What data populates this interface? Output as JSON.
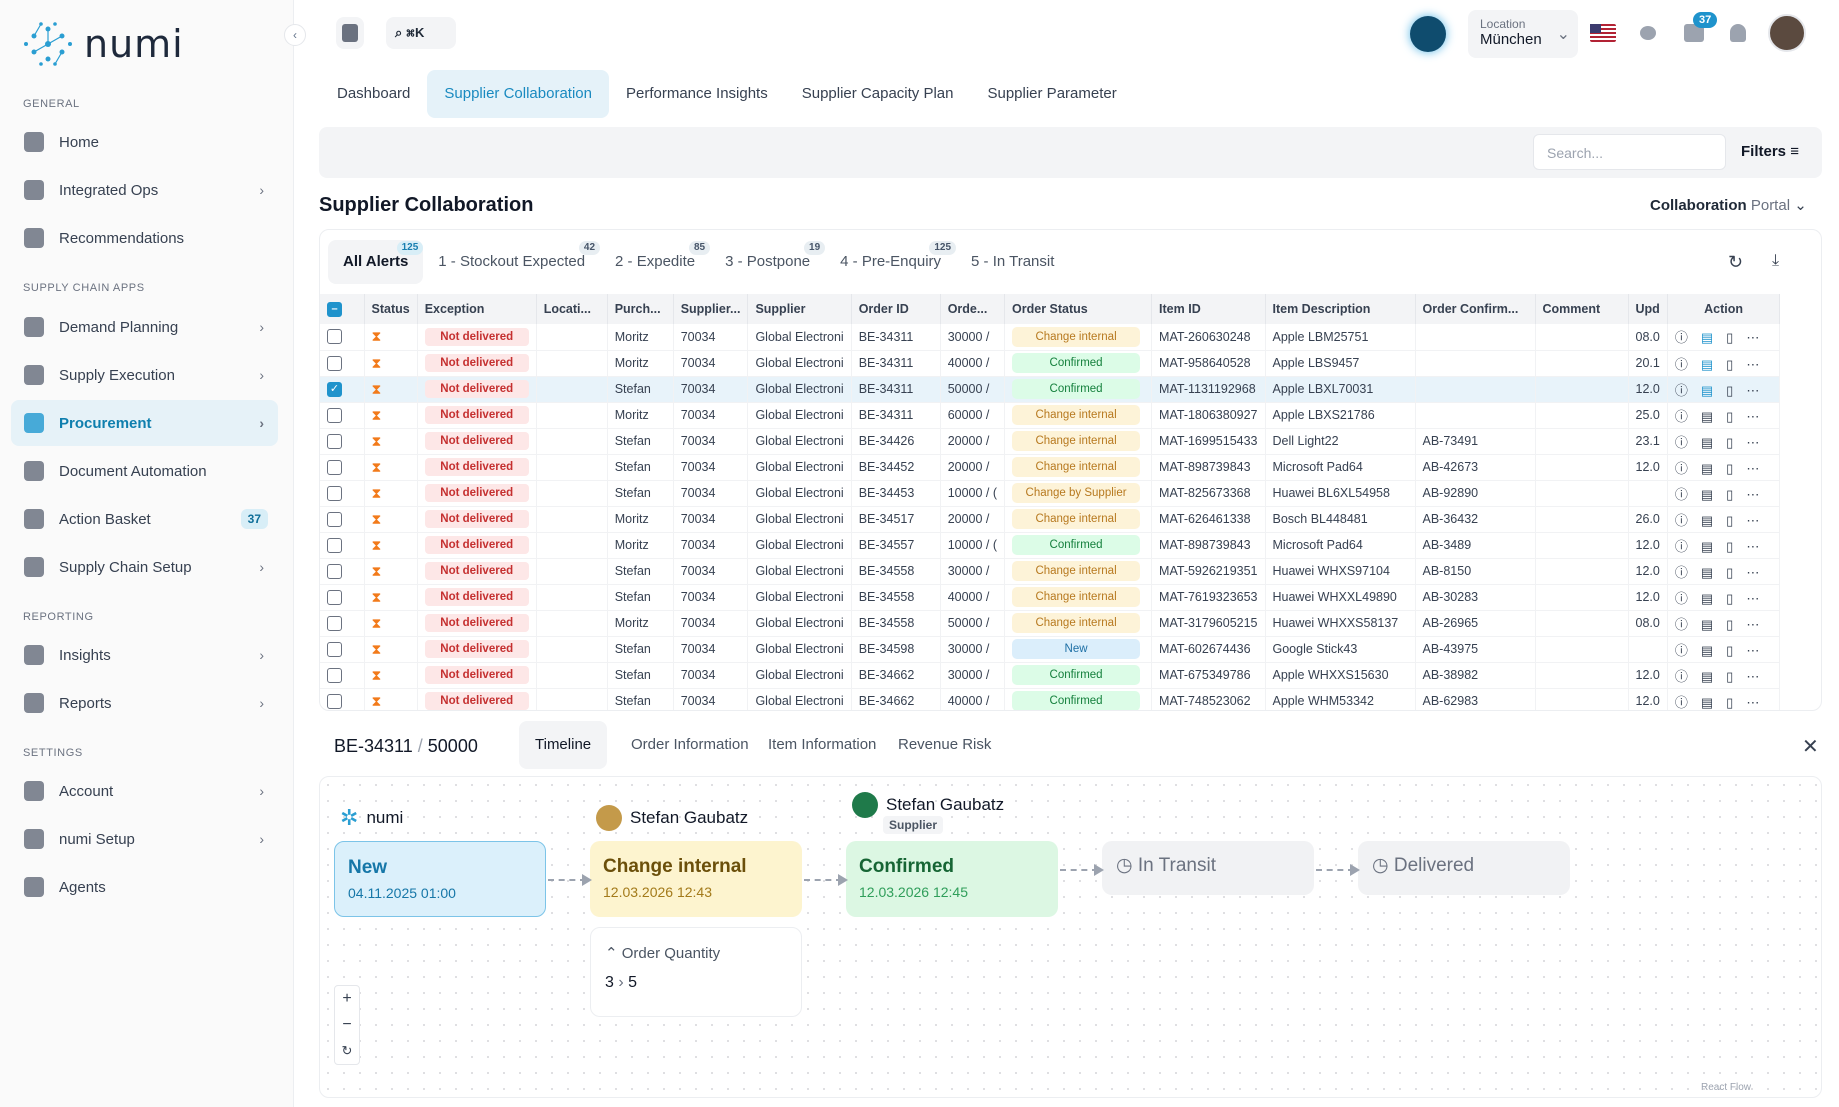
{
  "app": {
    "name": "numi",
    "collapse_icon": "chevron-left-icon"
  },
  "sidebar": {
    "sections": {
      "general": "GENERAL",
      "apps": "SUPPLY CHAIN APPS",
      "reporting": "REPORTING",
      "settings": "SETTINGS"
    },
    "items": [
      {
        "label": "Home",
        "icon": "home-icon"
      },
      {
        "label": "Integrated Ops",
        "icon": "ops-icon"
      },
      {
        "label": "Recommendations",
        "icon": "star-icon"
      },
      {
        "label": "Demand Planning",
        "icon": "chart-icon"
      },
      {
        "label": "Supply Execution",
        "icon": "truck-icon"
      },
      {
        "label": "Procurement",
        "icon": "dollar-icon"
      },
      {
        "label": "Document Automation",
        "icon": "doc-icon"
      },
      {
        "label": "Action Basket",
        "icon": "basket-icon",
        "badge": "37"
      },
      {
        "label": "Supply Chain Setup",
        "icon": "globe-icon"
      },
      {
        "label": "Insights",
        "icon": "flag-icon"
      },
      {
        "label": "Reports",
        "icon": "report-icon"
      },
      {
        "label": "Account",
        "icon": "user-icon"
      },
      {
        "label": "numi Setup",
        "icon": "gear-icon"
      },
      {
        "label": "Agents",
        "icon": "terminal-icon"
      }
    ]
  },
  "header": {
    "shortcut": "⌘K",
    "location_label": "Location",
    "location_value": "München",
    "notif_count": "37"
  },
  "tabs": [
    "Dashboard",
    "Supplier Collaboration",
    "Performance Insights",
    "Supplier Capacity Plan",
    "Supplier Parameter"
  ],
  "search": {
    "placeholder": "Search..."
  },
  "filters_label": "Filters",
  "page_title": "Supplier Collaboration",
  "portal": {
    "a": "Collaboration",
    "b": "Portal"
  },
  "alert_tabs": [
    {
      "label": "All Alerts",
      "count": "125"
    },
    {
      "label": "1 - Stockout Expected",
      "count": "42"
    },
    {
      "label": "2 - Expedite",
      "count": "85"
    },
    {
      "label": "3 - Postpone",
      "count": "19"
    },
    {
      "label": "4 - Pre-Enquiry",
      "count": "125"
    },
    {
      "label": "5 - In Transit",
      "count": ""
    }
  ],
  "columns": [
    "Status",
    "Exception",
    "Locati...",
    "Purch...",
    "Supplier...",
    "Supplier",
    "Order ID",
    "Orde...",
    "Order Status",
    "Item ID",
    "Item Description",
    "Order Confirm...",
    "Comment",
    "Upd",
    "Action"
  ],
  "rows": [
    [
      "Moritz",
      "70034",
      "Global Electroni",
      "BE-34311",
      "30000 /",
      "Change internal",
      "MAT-260630248",
      "Apple LBM25751",
      "",
      "08.0"
    ],
    [
      "Moritz",
      "70034",
      "Global Electroni",
      "BE-34311",
      "40000 /",
      "Confirmed",
      "MAT-958640528",
      "Apple LBS9457",
      "",
      "20.1"
    ],
    [
      "Stefan",
      "70034",
      "Global Electroni",
      "BE-34311",
      "50000 /",
      "Confirmed",
      "MAT-1131192968",
      "Apple LBXL70031",
      "",
      "12.0"
    ],
    [
      "Moritz",
      "70034",
      "Global Electroni",
      "BE-34311",
      "60000 /",
      "Change internal",
      "MAT-1806380927",
      "Apple LBXS21786",
      "",
      "25.0"
    ],
    [
      "Stefan",
      "70034",
      "Global Electroni",
      "BE-34426",
      "20000 /",
      "Change internal",
      "MAT-1699515433",
      "Dell Light22",
      "AB-73491",
      "23.1"
    ],
    [
      "Stefan",
      "70034",
      "Global Electroni",
      "BE-34452",
      "20000 /",
      "Change internal",
      "MAT-898739843",
      "Microsoft Pad64",
      "AB-42673",
      "12.0"
    ],
    [
      "Stefan",
      "70034",
      "Global Electroni",
      "BE-34453",
      "10000 / (",
      "Change by Supplier",
      "MAT-825673368",
      "Huawei BL6XL54958",
      "AB-92890",
      ""
    ],
    [
      "Moritz",
      "70034",
      "Global Electroni",
      "BE-34517",
      "20000 /",
      "Change internal",
      "MAT-626461338",
      "Bosch BL448481",
      "AB-36432",
      "26.0"
    ],
    [
      "Moritz",
      "70034",
      "Global Electroni",
      "BE-34557",
      "10000 / (",
      "Confirmed",
      "MAT-898739843",
      "Microsoft Pad64",
      "AB-3489",
      "12.0"
    ],
    [
      "Stefan",
      "70034",
      "Global Electroni",
      "BE-34558",
      "30000 /",
      "Change internal",
      "MAT-5926219351",
      "Huawei WHXS97104",
      "AB-8150",
      "12.0"
    ],
    [
      "Stefan",
      "70034",
      "Global Electroni",
      "BE-34558",
      "40000 /",
      "Change internal",
      "MAT-7619323653",
      "Huawei WHXXL49890",
      "AB-30283",
      "12.0"
    ],
    [
      "Moritz",
      "70034",
      "Global Electroni",
      "BE-34558",
      "50000 /",
      "Change internal",
      "MAT-3179605215",
      "Huawei WHXXS58137",
      "AB-26965",
      "08.0"
    ],
    [
      "Stefan",
      "70034",
      "Global Electroni",
      "BE-34598",
      "30000 /",
      "New",
      "MAT-602674436",
      "Google Stick43",
      "AB-43975",
      ""
    ],
    [
      "Stefan",
      "70034",
      "Global Electroni",
      "BE-34662",
      "30000 /",
      "Confirmed",
      "MAT-675349786",
      "Apple WHXXS15630",
      "AB-38982",
      "12.0"
    ],
    [
      "Stefan",
      "70034",
      "Global Electroni",
      "BE-34662",
      "40000 /",
      "Confirmed",
      "MAT-748523062",
      "Apple WHM53342",
      "AB-62983",
      "12.0"
    ]
  ],
  "exception_label": "Not delivered",
  "detail": {
    "order": "BE-34311",
    "sep": "/",
    "qty": "50000",
    "tabs": [
      "Timeline",
      "Order Information",
      "Item Information",
      "Revenue Risk"
    ],
    "actors": {
      "numi": "numi",
      "u1": "Stefan Gaubatz",
      "u2": "Stefan Gaubatz",
      "role": "Supplier"
    },
    "nodes": [
      {
        "title": "New",
        "date": "04.11.2025 01:00"
      },
      {
        "title": "Change internal",
        "date": "12.03.2026 12:43"
      },
      {
        "title": "Confirmed",
        "date": "12.03.2026 12:45"
      },
      {
        "title": "In Transit",
        "date": ""
      },
      {
        "title": "Delivered",
        "date": ""
      }
    ],
    "change": {
      "label": "Order Quantity",
      "from": "3",
      "arrow": "›",
      "to": "5"
    },
    "footer": "React Flow"
  },
  "colors": {
    "accent": "#1a8ac0",
    "warning": "#f27a1a",
    "danger": "#c53030"
  }
}
